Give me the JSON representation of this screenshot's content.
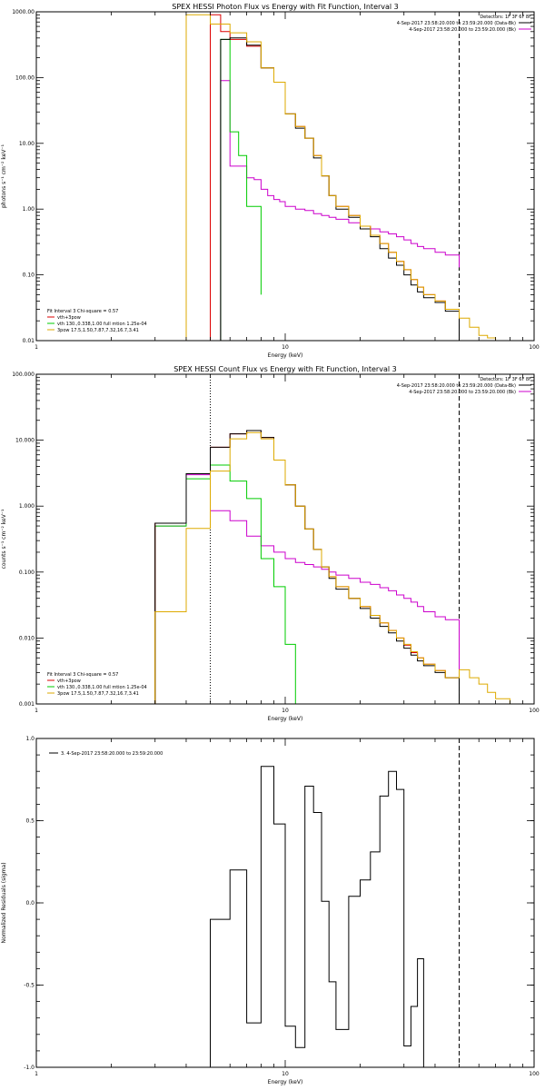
{
  "chart_data": [
    {
      "type": "line",
      "title": "SPEX HESSI Photon Flux vs Energy with Fit Function, Interval 3",
      "xlabel": "Energy (keV)",
      "ylabel": "photons s⁻¹ cm⁻² keV⁻¹",
      "xscale": "log",
      "yscale": "log",
      "xlim": [
        1,
        100
      ],
      "ylim": [
        0.01,
        1000
      ],
      "xticks": [
        {
          "v": 1,
          "label": "1"
        },
        {
          "v": 10,
          "label": "10"
        },
        {
          "v": 100,
          "label": "100"
        }
      ],
      "yticks": [
        {
          "v": 0.01,
          "label": "0.01"
        },
        {
          "v": 0.1,
          "label": "0.10"
        },
        {
          "v": 1,
          "label": "1.00"
        },
        {
          "v": 10,
          "label": "10.00"
        },
        {
          "v": 100,
          "label": "100.00"
        },
        {
          "v": 1000,
          "label": "1000.00"
        }
      ],
      "vlines": [
        {
          "x": 5,
          "style": "dash",
          "color": "#cc00cc"
        },
        {
          "x": 50,
          "style": "dash",
          "color": "#000000"
        }
      ],
      "legend_tr": {
        "title": "Detectors: 1F 3F 6F 8F",
        "items": [
          {
            "text": "4-Sep-2017 23:58:20.000 to 23:59:20.000 (Data-Bk)",
            "color": "#000000"
          },
          {
            "text": "4-Sep-2017 23:58:20.000 to 23:59:20.000 (Bk)",
            "color": "#cc00cc"
          }
        ]
      },
      "legend_bl": {
        "title": "Fit Interval 3   Chi-square = 0.57",
        "items": [
          {
            "text": "vth+3pow",
            "color": "#dd0000"
          },
          {
            "text": "vth 130.,0.338,1.00  full mtion 1.25e-04",
            "color": "#00cc00"
          },
          {
            "text": "3pow 17.5,1.50,7.87,7.32,16.7,3.41",
            "color": "#ddaa00"
          }
        ]
      },
      "series": [
        {
          "color": "#cc00cc",
          "edges": [
            5,
            5.5,
            6,
            6.5,
            7,
            7.5,
            8,
            8.5,
            9,
            9.5,
            10,
            11,
            12,
            13,
            14,
            15,
            16,
            18,
            20,
            22,
            24,
            26,
            28,
            30,
            32,
            34,
            36,
            40,
            44,
            50
          ],
          "values": [
            0.01,
            90,
            4.5,
            4.5,
            3.0,
            2.8,
            2.0,
            1.6,
            1.4,
            1.3,
            1.1,
            1.0,
            0.95,
            0.85,
            0.8,
            0.75,
            0.7,
            0.62,
            0.55,
            0.5,
            0.45,
            0.42,
            0.38,
            0.34,
            0.3,
            0.27,
            0.25,
            0.22,
            0.2,
            0.13
          ]
        },
        {
          "color": "#00cc00",
          "edges": [
            5,
            5.5,
            6,
            6.5,
            7,
            8
          ],
          "values": [
            0.01,
            380,
            15,
            6.5,
            1.1,
            0.05
          ]
        },
        {
          "color": "#dd0000",
          "edges": [
            5,
            5.5,
            6,
            7,
            8,
            9,
            10,
            11,
            12,
            13,
            14,
            15,
            16,
            18,
            20,
            22,
            24,
            26,
            28,
            30,
            32,
            34,
            36,
            40,
            44,
            50
          ],
          "values": [
            900,
            500,
            380,
            300,
            140,
            85,
            28,
            18,
            12,
            6.5,
            3.2,
            1.6,
            1.1,
            0.8,
            0.55,
            0.4,
            0.3,
            0.22,
            0.16,
            0.12,
            0.085,
            0.065,
            0.05,
            0.04,
            0.03,
            0.025
          ]
        },
        {
          "color": "#000000",
          "edges": [
            5,
            5.5,
            6,
            7,
            8,
            9,
            10,
            11,
            12,
            13,
            14,
            15,
            16,
            18,
            20,
            22,
            24,
            26,
            28,
            30,
            32,
            34,
            36,
            40,
            44,
            50
          ],
          "values": [
            0.01,
            380,
            400,
            310,
            140,
            85,
            28,
            17,
            12,
            6.0,
            3.2,
            1.6,
            1.0,
            0.75,
            0.5,
            0.38,
            0.25,
            0.18,
            0.14,
            0.1,
            0.07,
            0.055,
            0.045,
            0.038,
            0.028,
            0.01
          ]
        },
        {
          "color": "#ddaa00",
          "edges": [
            3,
            4,
            5,
            6,
            7,
            8,
            9,
            10,
            11,
            12,
            13,
            14,
            15,
            16,
            18,
            20,
            22,
            24,
            26,
            28,
            30,
            32,
            34,
            36,
            40,
            44,
            50,
            55,
            60,
            65,
            70
          ],
          "values": [
            0.01,
            900,
            650,
            480,
            350,
            140,
            85,
            28,
            18,
            12,
            6.5,
            3.2,
            1.6,
            1.1,
            0.8,
            0.55,
            0.4,
            0.3,
            0.22,
            0.16,
            0.12,
            0.085,
            0.065,
            0.05,
            0.04,
            0.03,
            0.022,
            0.016,
            0.012,
            0.011,
            0.01
          ]
        }
      ]
    },
    {
      "type": "line",
      "title": "SPEX HESSI Count Flux vs Energy with Fit Function, Interval 3",
      "xlabel": "Energy (keV)",
      "ylabel": "counts s⁻¹ cm⁻² keV⁻¹",
      "xscale": "log",
      "yscale": "log",
      "xlim": [
        1,
        100
      ],
      "ylim": [
        0.001,
        100
      ],
      "xticks": [
        {
          "v": 1,
          "label": "1"
        },
        {
          "v": 10,
          "label": "10"
        },
        {
          "v": 100,
          "label": "100"
        }
      ],
      "yticks": [
        {
          "v": 0.001,
          "label": "0.001"
        },
        {
          "v": 0.01,
          "label": "0.010"
        },
        {
          "v": 0.1,
          "label": "0.100"
        },
        {
          "v": 1,
          "label": "1.000"
        },
        {
          "v": 10,
          "label": "10.000"
        },
        {
          "v": 100,
          "label": "100.000"
        }
      ],
      "vlines": [
        {
          "x": 5,
          "style": "dot",
          "color": "#000000"
        },
        {
          "x": 50,
          "style": "dash",
          "color": "#000000"
        }
      ],
      "legend_tr": {
        "title": "Detectors: 1F 3F 6F 8F",
        "items": [
          {
            "text": "4-Sep-2017 23:58:20.000 to 23:59:20.000 (Data-Bk)",
            "color": "#000000"
          },
          {
            "text": "4-Sep-2017 23:58:20.000 to 23:59:20.000 (Bk)",
            "color": "#cc00cc"
          }
        ]
      },
      "legend_bl": {
        "title": "Fit Interval 3   Chi-square = 0.57",
        "items": [
          {
            "text": "vth+3pow",
            "color": "#dd0000"
          },
          {
            "text": "vth 130.,0.338,1.00  full mtion 1.25e-04",
            "color": "#00cc00"
          },
          {
            "text": "3pow 17.5,1.50,7.87,7.32,16.7,3.41",
            "color": "#ddaa00"
          }
        ]
      },
      "series": [
        {
          "color": "#cc00cc",
          "edges": [
            3,
            4,
            5,
            6,
            7,
            8,
            9,
            10,
            11,
            12,
            13,
            14,
            15,
            16,
            18,
            20,
            22,
            24,
            26,
            28,
            30,
            32,
            34,
            36,
            40,
            44,
            50
          ],
          "values": [
            0.5,
            3.0,
            0.85,
            0.6,
            0.35,
            0.25,
            0.2,
            0.16,
            0.14,
            0.13,
            0.12,
            0.11,
            0.1,
            0.09,
            0.08,
            0.07,
            0.065,
            0.058,
            0.052,
            0.045,
            0.04,
            0.035,
            0.03,
            0.025,
            0.021,
            0.019,
            0.001
          ]
        },
        {
          "color": "#00cc00",
          "edges": [
            3,
            4,
            5,
            6,
            7,
            8,
            9,
            10,
            11
          ],
          "values": [
            0.5,
            2.6,
            4.2,
            2.4,
            1.3,
            0.16,
            0.06,
            0.008,
            0.001
          ]
        },
        {
          "color": "#dd0000",
          "edges": [
            3,
            4,
            5,
            6,
            7,
            8,
            9,
            10,
            11,
            12,
            13,
            14,
            15,
            16,
            18,
            20,
            22,
            24,
            26,
            28,
            30,
            32,
            34,
            36,
            40,
            44,
            50
          ],
          "values": [
            0.55,
            3.1,
            7.8,
            12.5,
            14.0,
            11.0,
            5.0,
            2.1,
            1.0,
            0.45,
            0.22,
            0.12,
            0.085,
            0.06,
            0.04,
            0.03,
            0.022,
            0.017,
            0.013,
            0.01,
            0.0078,
            0.006,
            0.005,
            0.004,
            0.0032,
            0.0025,
            0.001
          ]
        },
        {
          "color": "#000000",
          "edges": [
            3,
            4,
            5,
            6,
            7,
            8,
            9,
            10,
            11,
            12,
            13,
            14,
            15,
            16,
            18,
            20,
            22,
            24,
            26,
            28,
            30,
            32,
            34,
            36,
            40,
            44,
            50
          ],
          "values": [
            0.55,
            3.1,
            7.8,
            12.5,
            14.0,
            11.0,
            5.0,
            2.1,
            1.0,
            0.45,
            0.22,
            0.12,
            0.08,
            0.055,
            0.04,
            0.028,
            0.02,
            0.015,
            0.012,
            0.009,
            0.007,
            0.0055,
            0.0045,
            0.0038,
            0.003,
            0.0025,
            0.001
          ]
        },
        {
          "color": "#ddaa00",
          "edges": [
            3,
            4,
            5,
            6,
            7,
            8,
            9,
            10,
            11,
            12,
            13,
            14,
            15,
            16,
            18,
            20,
            22,
            24,
            26,
            28,
            30,
            32,
            34,
            36,
            40,
            44,
            50,
            55,
            60,
            65,
            70,
            80
          ],
          "values": [
            0.025,
            0.46,
            3.4,
            10.5,
            13.0,
            10.5,
            5.0,
            2.1,
            1.0,
            0.45,
            0.22,
            0.12,
            0.085,
            0.06,
            0.04,
            0.03,
            0.022,
            0.017,
            0.013,
            0.01,
            0.008,
            0.0062,
            0.005,
            0.004,
            0.0032,
            0.0025,
            0.0033,
            0.0025,
            0.002,
            0.0015,
            0.0012,
            0.001
          ]
        }
      ]
    },
    {
      "type": "line",
      "title": "",
      "xlabel": "Energy (keV)",
      "ylabel": "Normalized Residuals (sigma)",
      "xscale": "log",
      "yscale": "linear",
      "xlim": [
        1,
        100
      ],
      "ylim": [
        -1.0,
        1.0
      ],
      "xticks": [
        {
          "v": 1,
          "label": "1"
        },
        {
          "v": 10,
          "label": "10"
        },
        {
          "v": 100,
          "label": "100"
        }
      ],
      "yticks": [
        {
          "v": -1.0,
          "label": "-1.0"
        },
        {
          "v": -0.5,
          "label": "-0.5"
        },
        {
          "v": 0.0,
          "label": "0.0"
        },
        {
          "v": 0.5,
          "label": "0.5"
        },
        {
          "v": 1.0,
          "label": "1.0"
        }
      ],
      "vlines": [
        {
          "x": 50,
          "style": "dash",
          "color": "#000000"
        }
      ],
      "legend_tl": {
        "items": [
          {
            "text": "3.  4-Sep-2017 23:58:20.000 to 23:59:20.000",
            "color": "#000000"
          }
        ]
      },
      "series": [
        {
          "color": "#000000",
          "edges": [
            5,
            6,
            7,
            8,
            9,
            10,
            11,
            12,
            13,
            14,
            15,
            16,
            18,
            20,
            22,
            24,
            26,
            28,
            30,
            32,
            34,
            36,
            40,
            44,
            50
          ],
          "values": [
            -0.1,
            0.2,
            -0.73,
            0.83,
            0.48,
            -0.75,
            -0.88,
            0.71,
            0.55,
            0.01,
            -0.48,
            -0.77,
            0.04,
            0.14,
            0.31,
            0.65,
            0.8,
            0.69,
            -0.87,
            -0.63,
            -0.34,
            -1.0,
            -1.0,
            -1.0,
            -1.0
          ]
        }
      ]
    }
  ]
}
